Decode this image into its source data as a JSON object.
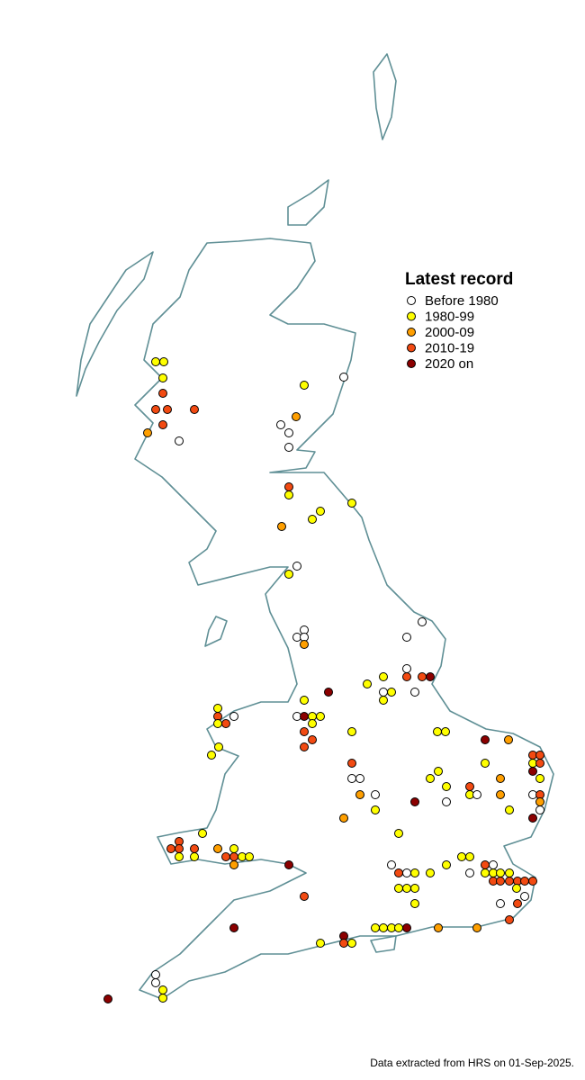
{
  "legend": {
    "title": "Latest record",
    "items": [
      {
        "label": "Before 1980",
        "color": "#ffffff"
      },
      {
        "label": "1980-99",
        "color": "#ffff00"
      },
      {
        "label": "2000-09",
        "color": "#ff9f00"
      },
      {
        "label": "2010-19",
        "color": "#f24a12"
      },
      {
        "label": "2020 on",
        "color": "#8b0000"
      }
    ]
  },
  "records": [
    [
      173,
      402,
      1
    ],
    [
      182,
      402,
      1
    ],
    [
      181,
      420,
      1
    ],
    [
      181,
      437,
      3
    ],
    [
      173,
      455,
      3
    ],
    [
      186,
      455,
      3
    ],
    [
      216,
      455,
      3
    ],
    [
      181,
      472,
      3
    ],
    [
      164,
      481,
      2
    ],
    [
      199,
      490,
      0
    ],
    [
      338,
      428,
      1
    ],
    [
      382,
      419,
      0
    ],
    [
      329,
      463,
      2
    ],
    [
      312,
      472,
      0
    ],
    [
      321,
      481,
      0
    ],
    [
      321,
      497,
      0
    ],
    [
      321,
      541,
      3
    ],
    [
      321,
      550,
      1
    ],
    [
      391,
      559,
      1
    ],
    [
      356,
      568,
      1
    ],
    [
      347,
      577,
      1
    ],
    [
      313,
      585,
      2
    ],
    [
      330,
      629,
      0
    ],
    [
      321,
      638,
      1
    ],
    [
      469,
      691,
      0
    ],
    [
      338,
      700,
      0
    ],
    [
      330,
      708,
      0
    ],
    [
      338,
      708,
      0
    ],
    [
      338,
      716,
      2
    ],
    [
      452,
      708,
      0
    ],
    [
      452,
      743,
      0
    ],
    [
      426,
      752,
      1
    ],
    [
      452,
      752,
      3
    ],
    [
      469,
      752,
      3
    ],
    [
      478,
      752,
      4
    ],
    [
      408,
      760,
      1
    ],
    [
      461,
      769,
      0
    ],
    [
      435,
      769,
      1
    ],
    [
      426,
      778,
      1
    ],
    [
      426,
      769,
      0
    ],
    [
      365,
      769,
      4
    ],
    [
      338,
      778,
      1
    ],
    [
      242,
      787,
      1
    ],
    [
      242,
      796,
      3
    ],
    [
      260,
      796,
      0
    ],
    [
      242,
      804,
      1
    ],
    [
      251,
      804,
      3
    ],
    [
      330,
      796,
      0
    ],
    [
      338,
      796,
      4
    ],
    [
      347,
      796,
      1
    ],
    [
      356,
      796,
      1
    ],
    [
      347,
      804,
      1
    ],
    [
      338,
      813,
      3
    ],
    [
      347,
      822,
      3
    ],
    [
      338,
      830,
      3
    ],
    [
      391,
      813,
      1
    ],
    [
      486,
      813,
      1
    ],
    [
      495,
      813,
      1
    ],
    [
      539,
      822,
      4
    ],
    [
      565,
      822,
      2
    ],
    [
      243,
      830,
      1
    ],
    [
      235,
      839,
      1
    ],
    [
      592,
      839,
      3
    ],
    [
      600,
      839,
      3
    ],
    [
      592,
      848,
      1
    ],
    [
      600,
      848,
      3
    ],
    [
      592,
      857,
      4
    ],
    [
      539,
      848,
      1
    ],
    [
      391,
      848,
      3
    ],
    [
      487,
      857,
      1
    ],
    [
      391,
      865,
      0
    ],
    [
      400,
      865,
      0
    ],
    [
      478,
      865,
      1
    ],
    [
      556,
      865,
      2
    ],
    [
      600,
      865,
      1
    ],
    [
      522,
      874,
      3
    ],
    [
      496,
      874,
      1
    ],
    [
      400,
      883,
      2
    ],
    [
      417,
      883,
      0
    ],
    [
      522,
      883,
      1
    ],
    [
      530,
      883,
      0
    ],
    [
      556,
      883,
      2
    ],
    [
      592,
      883,
      0
    ],
    [
      600,
      883,
      3
    ],
    [
      461,
      891,
      4
    ],
    [
      496,
      891,
      0
    ],
    [
      600,
      891,
      2
    ],
    [
      417,
      900,
      1
    ],
    [
      566,
      900,
      1
    ],
    [
      600,
      900,
      0
    ],
    [
      592,
      909,
      4
    ],
    [
      382,
      909,
      2
    ],
    [
      443,
      926,
      1
    ],
    [
      225,
      926,
      1
    ],
    [
      199,
      935,
      3
    ],
    [
      190,
      943,
      3
    ],
    [
      199,
      943,
      3
    ],
    [
      216,
      943,
      3
    ],
    [
      242,
      943,
      2
    ],
    [
      260,
      943,
      1
    ],
    [
      251,
      952,
      3
    ],
    [
      260,
      952,
      3
    ],
    [
      269,
      952,
      1
    ],
    [
      277,
      952,
      1
    ],
    [
      199,
      952,
      1
    ],
    [
      216,
      952,
      1
    ],
    [
      260,
      961,
      2
    ],
    [
      321,
      961,
      4
    ],
    [
      513,
      952,
      1
    ],
    [
      522,
      952,
      1
    ],
    [
      539,
      961,
      3
    ],
    [
      548,
      961,
      0
    ],
    [
      435,
      961,
      0
    ],
    [
      496,
      961,
      1
    ],
    [
      443,
      970,
      3
    ],
    [
      452,
      970,
      0
    ],
    [
      478,
      970,
      1
    ],
    [
      461,
      970,
      1
    ],
    [
      522,
      970,
      0
    ],
    [
      539,
      970,
      1
    ],
    [
      548,
      970,
      1
    ],
    [
      556,
      970,
      1
    ],
    [
      566,
      970,
      1
    ],
    [
      548,
      979,
      3
    ],
    [
      556,
      979,
      3
    ],
    [
      566,
      979,
      3
    ],
    [
      575,
      979,
      3
    ],
    [
      583,
      979,
      3
    ],
    [
      592,
      979,
      3
    ],
    [
      443,
      987,
      1
    ],
    [
      452,
      987,
      1
    ],
    [
      461,
      987,
      1
    ],
    [
      574,
      987,
      1
    ],
    [
      583,
      996,
      0
    ],
    [
      338,
      996,
      3
    ],
    [
      461,
      1004,
      1
    ],
    [
      556,
      1004,
      0
    ],
    [
      575,
      1004,
      3
    ],
    [
      566,
      1022,
      3
    ],
    [
      417,
      1031,
      1
    ],
    [
      426,
      1031,
      1
    ],
    [
      435,
      1031,
      1
    ],
    [
      443,
      1031,
      1
    ],
    [
      452,
      1031,
      4
    ],
    [
      487,
      1031,
      2
    ],
    [
      530,
      1031,
      2
    ],
    [
      260,
      1031,
      4
    ],
    [
      382,
      1040,
      4
    ],
    [
      382,
      1048,
      3
    ],
    [
      391,
      1048,
      1
    ],
    [
      356,
      1048,
      1
    ],
    [
      173,
      1083,
      0
    ],
    [
      173,
      1092,
      0
    ],
    [
      181,
      1100,
      1
    ],
    [
      181,
      1109,
      1
    ],
    [
      120,
      1110,
      4
    ]
  ],
  "footer": "Data extracted from HRS on 01-Sep-2025."
}
